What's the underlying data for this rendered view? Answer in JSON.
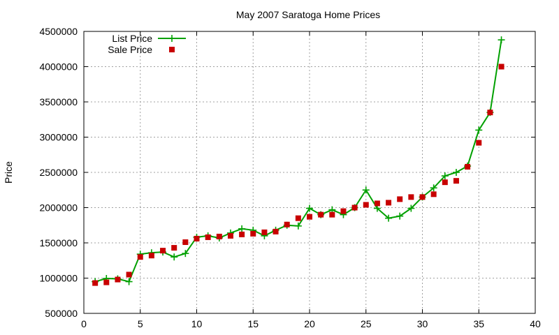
{
  "chart_data": {
    "type": "line",
    "title": "May 2007 Saratoga Home Prices",
    "xlabel": "",
    "ylabel": "Price",
    "xlim": [
      0,
      40
    ],
    "ylim": [
      500000,
      4500000
    ],
    "x_ticks": [
      0,
      5,
      10,
      15,
      20,
      25,
      30,
      35,
      40
    ],
    "y_ticks": [
      500000,
      1000000,
      1500000,
      2000000,
      2500000,
      3000000,
      3500000,
      4000000,
      4500000
    ],
    "grid": true,
    "legend_position": "top-left",
    "series": [
      {
        "name": "List Price",
        "style": "line-with-plus-markers",
        "color": "#00a000",
        "x": [
          1,
          2,
          3,
          4,
          5,
          6,
          7,
          8,
          9,
          10,
          11,
          12,
          13,
          14,
          15,
          16,
          17,
          18,
          19,
          20,
          21,
          22,
          23,
          24,
          25,
          26,
          27,
          28,
          29,
          30,
          31,
          32,
          33,
          34,
          35,
          36,
          37
        ],
        "values": [
          950000,
          995000,
          990000,
          950000,
          1340000,
          1360000,
          1370000,
          1300000,
          1350000,
          1580000,
          1600000,
          1570000,
          1640000,
          1700000,
          1680000,
          1600000,
          1680000,
          1750000,
          1740000,
          1990000,
          1900000,
          1970000,
          1900000,
          2000000,
          2250000,
          1990000,
          1850000,
          1880000,
          1990000,
          2150000,
          2280000,
          2450000,
          2500000,
          2590000,
          3100000,
          3350000,
          4380000
        ]
      },
      {
        "name": "Sale Price",
        "style": "square-markers",
        "color": "#c80000",
        "x": [
          1,
          2,
          3,
          4,
          5,
          6,
          7,
          8,
          9,
          10,
          11,
          12,
          13,
          14,
          15,
          16,
          17,
          18,
          19,
          20,
          21,
          22,
          23,
          24,
          25,
          26,
          27,
          28,
          29,
          30,
          31,
          32,
          33,
          34,
          35,
          36,
          37
        ],
        "values": [
          930000,
          940000,
          980000,
          1050000,
          1300000,
          1320000,
          1390000,
          1430000,
          1510000,
          1560000,
          1580000,
          1590000,
          1600000,
          1620000,
          1630000,
          1650000,
          1660000,
          1760000,
          1850000,
          1870000,
          1900000,
          1900000,
          1950000,
          2000000,
          2040000,
          2060000,
          2070000,
          2120000,
          2150000,
          2150000,
          2190000,
          2360000,
          2380000,
          2580000,
          2920000,
          3350000,
          4000000
        ]
      }
    ]
  }
}
